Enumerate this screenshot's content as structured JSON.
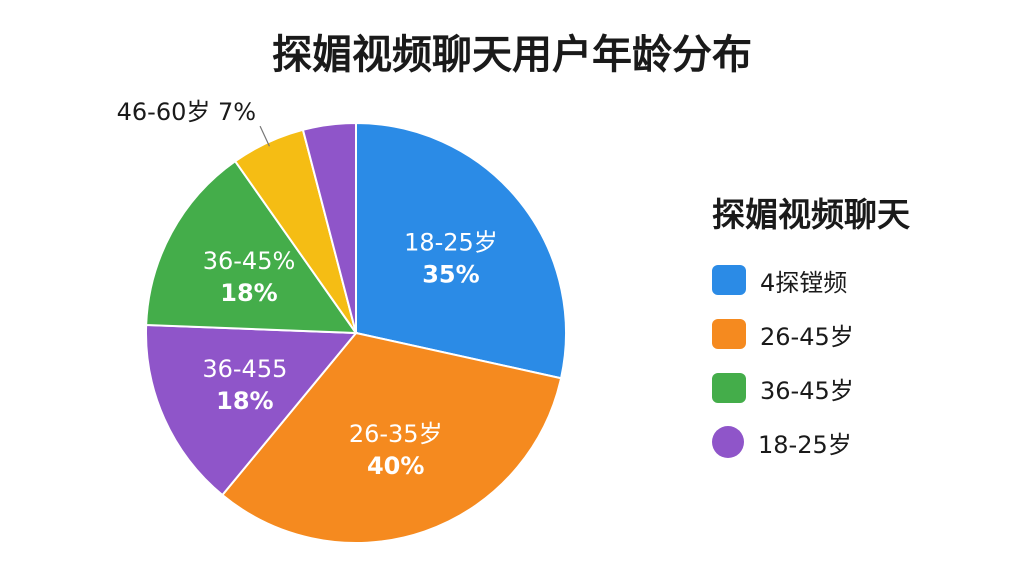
{
  "chart_data": {
    "type": "pie",
    "title": "探媚视频聊天用户年龄分布",
    "slices": [
      {
        "label": "18-25岁",
        "value": 35,
        "value_label": "35%",
        "color": "#2b8be6"
      },
      {
        "label": "26-35岁",
        "value": 40,
        "value_label": "40%",
        "color": "#f58a1f"
      },
      {
        "label": "36-455",
        "value": 18,
        "value_label": "18%",
        "color": "#8f55c9"
      },
      {
        "label": "36-45%",
        "value": 18,
        "value_label": "18%",
        "color": "#44ad4a"
      },
      {
        "label": "46-60岁",
        "value": 7,
        "value_label": "7%",
        "color": "#f5bd14",
        "outside": true
      },
      {
        "label": "",
        "value": 5,
        "value_label": "",
        "color": "#8f55c9"
      }
    ],
    "legend": {
      "title": "探媚视频聊天",
      "position": "right",
      "items": [
        {
          "label": "4探镗频",
          "color": "#2b8be6",
          "shape": "square"
        },
        {
          "label": "26-45岁",
          "color": "#f58a1f",
          "shape": "square"
        },
        {
          "label": "36-45岁",
          "color": "#44ad4a",
          "shape": "square"
        },
        {
          "label": "18-25岁",
          "color": "#8f55c9",
          "shape": "circle"
        }
      ]
    }
  }
}
